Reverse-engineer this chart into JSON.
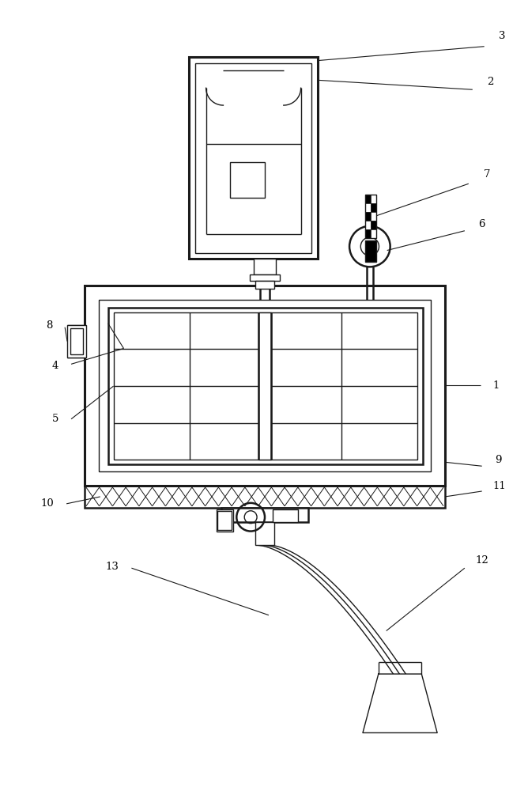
{
  "bg": "#ffffff",
  "lc": "#1a1a1a",
  "lw": 1.0,
  "lw2": 1.8,
  "lw3": 2.2,
  "fig_w": 6.68,
  "fig_h": 10.0
}
